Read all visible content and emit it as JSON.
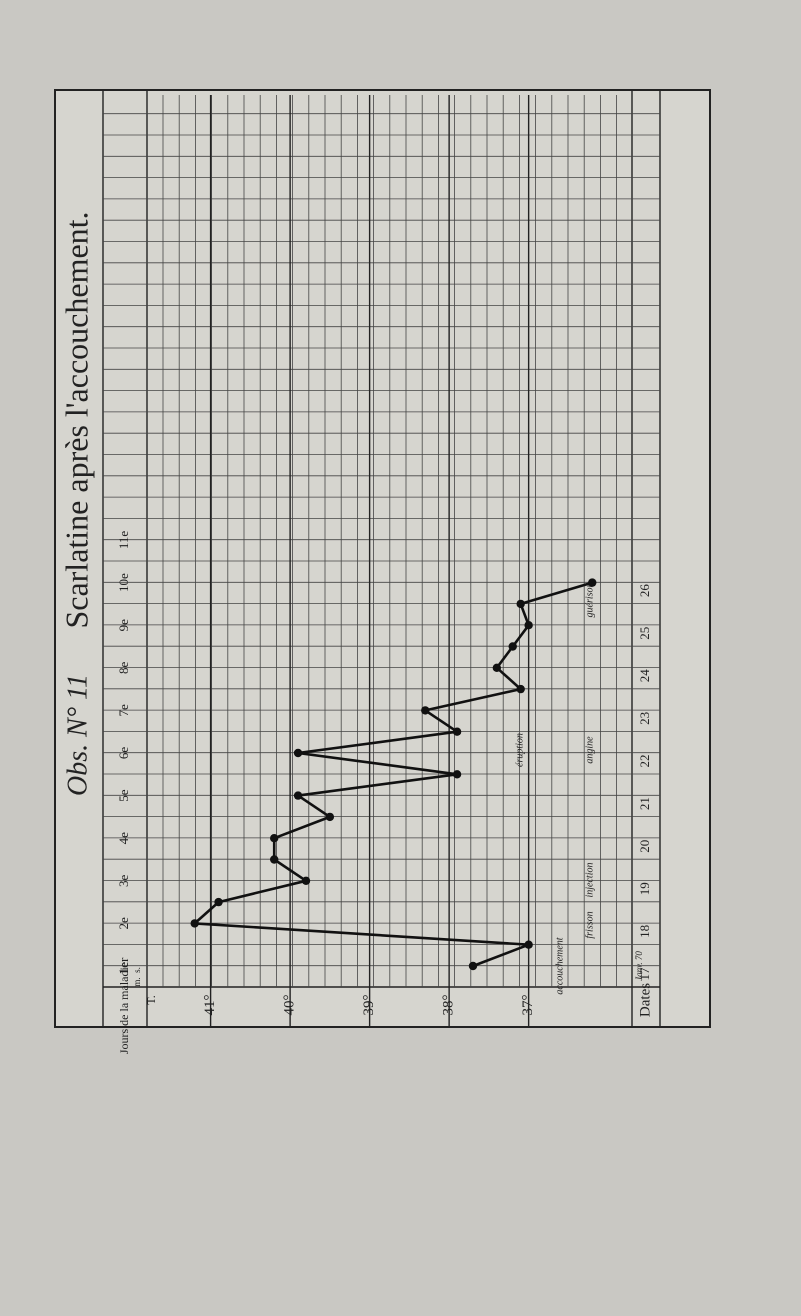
{
  "chart_data": {
    "type": "line",
    "title": "Scarlatine après l'accouchement.",
    "subtitle": "Obs. N° 11",
    "x_label": "T.",
    "y_label": "Jours de la maladie",
    "dates_label": "Dates",
    "date_note": "Janv. 70",
    "categories": [
      "1er",
      "2e",
      "3e",
      "4e",
      "5e",
      "6e",
      "7e",
      "8e",
      "9e",
      "10e",
      "11e"
    ],
    "dates": [
      "17",
      "18",
      "19",
      "20",
      "21",
      "22",
      "23",
      "24",
      "25",
      "26",
      null
    ],
    "xlim": [
      35.7,
      41.8
    ],
    "xticks": [
      {
        "value": 41,
        "label": "41°"
      },
      {
        "value": 40,
        "label": "40°"
      },
      {
        "value": 39,
        "label": "39°"
      },
      {
        "value": 38,
        "label": "38°"
      },
      {
        "value": 37,
        "label": "37°"
      }
    ],
    "color": "#111111",
    "series": [
      {
        "name": "m.",
        "values": [
          null,
          37.0,
          40.9,
          40.2,
          39.5,
          37.9,
          37.9,
          37.1,
          37.2,
          37.1,
          null
        ]
      },
      {
        "name": "s.",
        "values": [
          37.7,
          41.2,
          39.8,
          40.2,
          39.9,
          39.9,
          38.3,
          37.4,
          37.0,
          36.2,
          null
        ]
      }
    ],
    "annotations": [
      "accouchement",
      "frisson",
      "injection",
      "éruption",
      "angine",
      "guérison"
    ]
  }
}
